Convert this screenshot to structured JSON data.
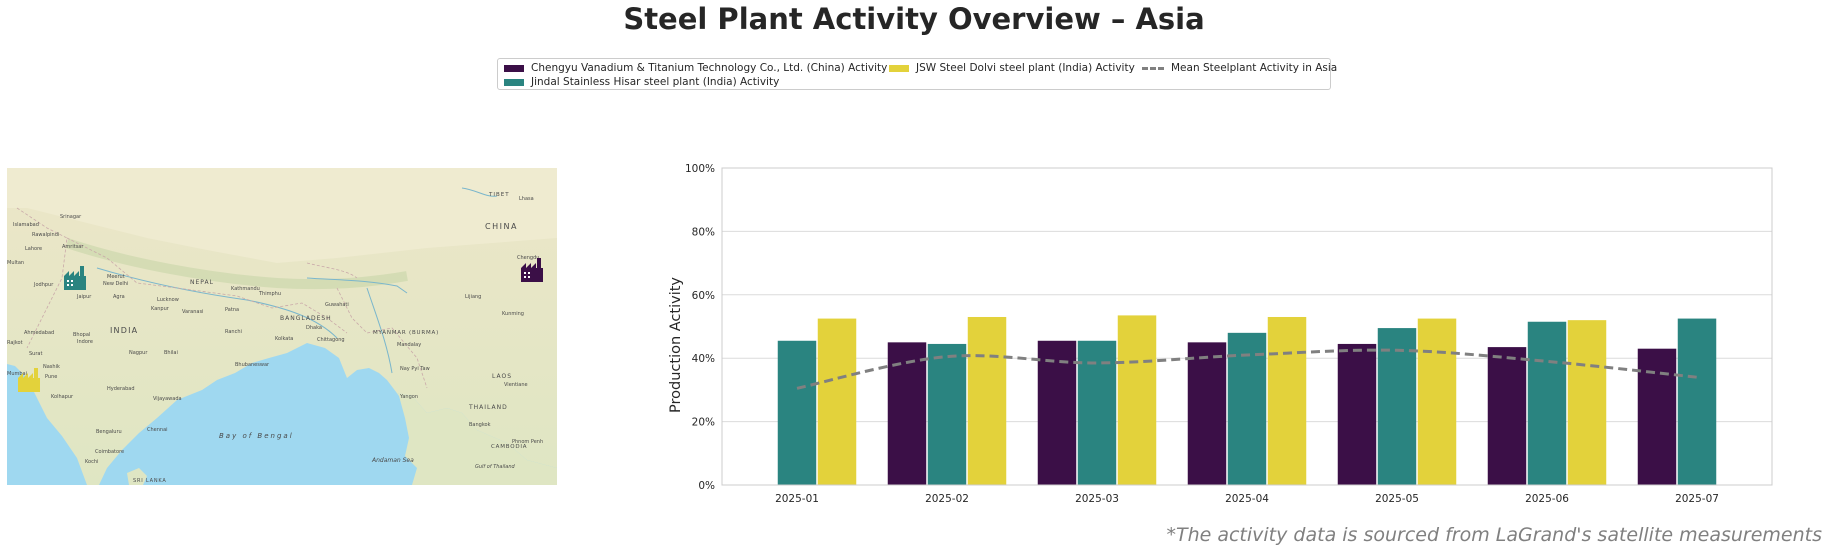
{
  "title": "Steel Plant Activity Overview – Asia",
  "footnote": "*The activity data is sourced from LaGrand's satellite measurements",
  "legend": {
    "items": [
      {
        "label": "Chengyu Vanadium & Titanium Technology Co., Ltd. (China) Activity",
        "color": "#3b0f47",
        "kind": "bar"
      },
      {
        "label": "Jindal Stainless Hisar steel plant (India) Activity",
        "color": "#2a8480",
        "kind": "bar"
      },
      {
        "label": "JSW Steel Dolvi steel plant (India) Activity",
        "color": "#e3d23b",
        "kind": "bar"
      },
      {
        "label": "Mean Steelplant Activity in Asia",
        "color": "#808080",
        "kind": "line"
      }
    ]
  },
  "map": {
    "labels": {
      "china": "CHINA",
      "india": "INDIA",
      "nepal": "NEPAL",
      "bangladesh": "BANGLADESH",
      "myanmar": "MYANMAR (BURMA)",
      "thailand": "THAILAND",
      "laos": "LAOS",
      "bay": "Bay of Bengal",
      "andaman": "Andaman Sea",
      "islamabad": "Islamabad",
      "lahore": "Lahore",
      "amritsar": "Amritsar",
      "rawalpindi": "Rawalpindi",
      "multan": "Multan",
      "srinagar": "Srinagar",
      "meerut": "Meerut",
      "newdelhi": "New Delhi",
      "jaipur": "Jaipur",
      "agra": "Agra",
      "lucknow": "Lucknow",
      "kanpur": "Kanpur",
      "varanasi": "Varanasi",
      "patna": "Patna",
      "kathmandu": "Kathmandu",
      "thimphu": "Thimphu",
      "guwahati": "Guwahati",
      "dhaka": "Dhaka",
      "kolkata": "Kolkata",
      "ranchi": "Ranchi",
      "chittagong": "Chittagong",
      "mandalay": "Mandalay",
      "naypyitaw": "Nay Pyi Taw",
      "yangon": "Yangon",
      "ahmedabad": "Ahmedabad",
      "bhopal": "Bhopal",
      "indore": "Indore",
      "nagpur": "Nagpur",
      "bhilai": "Bhilai",
      "surat": "Surat",
      "nashik": "Nashik",
      "pune": "Pune",
      "mumbai": "Mumbai",
      "hyderabad": "Hyderabad",
      "vijayawada": "Vijayawada",
      "bhubaneswar": "Bhubaneswar",
      "kolhapur": "Kolhapur",
      "bengaluru": "Bengaluru",
      "chennai": "Chennai",
      "coimbatore": "Coimbatore",
      "kochi": "Kochi",
      "srilanka": "SRI LANKA",
      "chengdu": "Chengdu",
      "lijiang": "Lijiang",
      "kunming": "Kunming",
      "lhasa": "Lhasa",
      "tibet": "TIBET",
      "vientiane": "Vientiane",
      "bangkok": "Bangkok",
      "phnompenh": "Phnom Penh",
      "cambodia": "CAMBODIA",
      "gulf": "Gulf of Thailand",
      "rajkot": "Rajkot",
      "jodhpur": "Jodhpur"
    }
  },
  "chart_data": {
    "type": "bar",
    "ylabel": "Production Activity",
    "xlabel": "",
    "ylim": [
      0,
      100
    ],
    "yticks": [
      "0%",
      "20%",
      "40%",
      "60%",
      "80%",
      "100%"
    ],
    "grid": true,
    "categories": [
      "2025-01",
      "2025-02",
      "2025-03",
      "2025-04",
      "2025-05",
      "2025-06",
      "2025-07"
    ],
    "series": [
      {
        "name": "Chengyu Vanadium & Titanium Technology Co., Ltd. (China) Activity",
        "color": "#3b0f47",
        "values": [
          null,
          45,
          45.5,
          45,
          44.5,
          43.5,
          43
        ]
      },
      {
        "name": "Jindal Stainless Hisar steel plant (India) Activity",
        "color": "#2a8480",
        "values": [
          45.5,
          44.5,
          45.5,
          48,
          49.5,
          51.5,
          52.5
        ]
      },
      {
        "name": "JSW Steel Dolvi steel plant (India) Activity",
        "color": "#e3d23b",
        "values": [
          52.5,
          53,
          53.5,
          53,
          52.5,
          52,
          null
        ]
      }
    ],
    "line": {
      "name": "Mean Steelplant Activity in Asia",
      "color": "#808080",
      "values": [
        30.5,
        40.5,
        38.5,
        41,
        42.5,
        39,
        34
      ]
    }
  }
}
